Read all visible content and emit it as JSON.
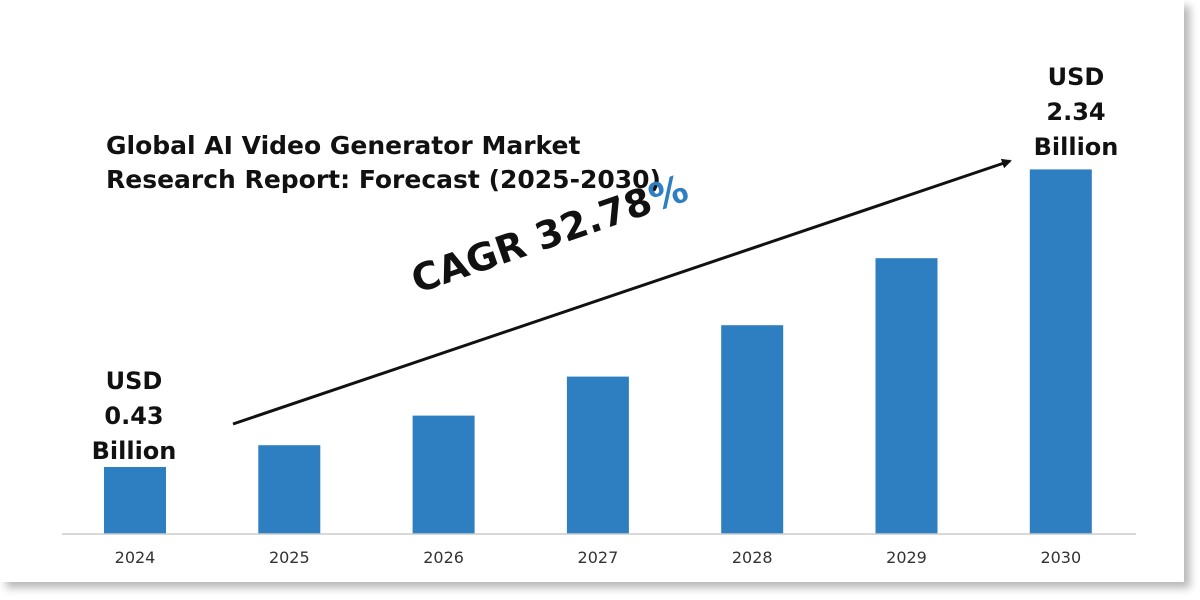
{
  "chart_data": {
    "type": "bar",
    "title": "Global AI Video Generator Market Research Report: Forecast (2025-2030)",
    "title_lines": [
      "Global AI Video Generator Market",
      "Research Report: Forecast (2025-2030)"
    ],
    "categories": [
      "2024",
      "2025",
      "2026",
      "2027",
      "2028",
      "2029",
      "2030"
    ],
    "values": [
      0.43,
      0.57,
      0.76,
      1.01,
      1.34,
      1.77,
      2.34
    ],
    "unit": "USD Billion",
    "ylim": [
      0,
      2.4
    ],
    "grid": false,
    "bar_color": "#2e7fc2",
    "cagr": {
      "label": "CAGR 32.78",
      "percent_sign": "%"
    },
    "callouts": {
      "start": {
        "line1": "USD",
        "line2": "0.43",
        "line3": "Billion"
      },
      "end": {
        "line1": "USD",
        "line2": "2.34",
        "line3": "Billion"
      }
    }
  },
  "colors": {
    "bar": "#2e7fc2",
    "accent": "#2e7fc2",
    "text": "#111111",
    "axis": "#cccccc"
  }
}
